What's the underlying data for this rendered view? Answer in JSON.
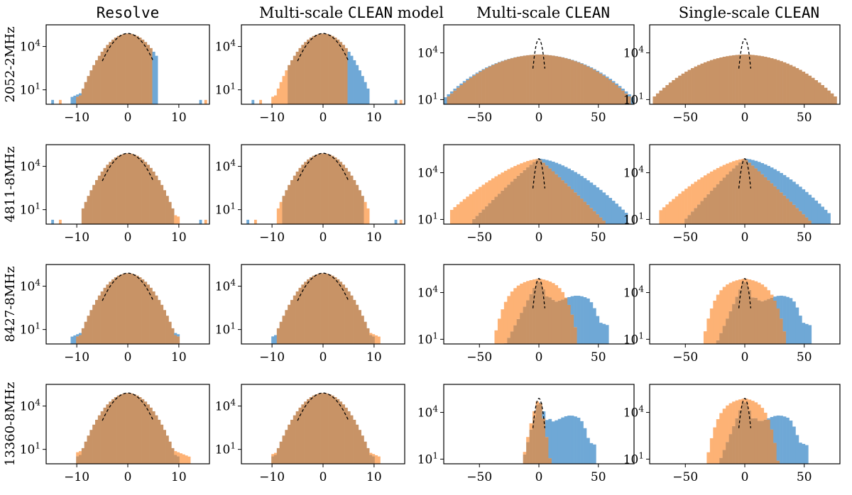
{
  "figure": {
    "columns": [
      {
        "label_plain": "",
        "label_mono": "Resolve",
        "label_tail": ""
      },
      {
        "label_plain": "Multi-scale ",
        "label_mono": "CLEAN",
        "label_tail": " model"
      },
      {
        "label_plain": "Multi-scale ",
        "label_mono": "CLEAN",
        "label_tail": ""
      },
      {
        "label_plain": "Single-scale ",
        "label_mono": "CLEAN",
        "label_tail": ""
      }
    ],
    "rows": [
      "2052-2MHz",
      "4811-8MHz",
      "8427-8MHz",
      "13360-8MHz"
    ],
    "colors": {
      "blue": "#6fa8d6",
      "orange": "#fdb275",
      "overlap": "#c89366",
      "gaussian": "#000000"
    }
  },
  "chart_data": {
    "type": "histogram-grid",
    "yscale": "log",
    "ytick_labels": [
      "10^1",
      "10^4"
    ],
    "gaussian_overlay": "dashed",
    "columns": [
      {
        "xlim": [
          -16,
          16
        ],
        "xticks": [
          -10,
          0,
          10
        ],
        "ylim_log10": [
          0,
          5.5
        ]
      },
      {
        "xlim": [
          -16,
          16
        ],
        "xticks": [
          -10,
          0,
          10
        ],
        "ylim_log10": [
          0,
          5.5
        ]
      },
      {
        "xlim": [
          -80,
          80
        ],
        "xticks": [
          -50,
          0,
          50
        ],
        "ylim_log10": [
          0.7,
          5.8
        ]
      },
      {
        "xlim": [
          -80,
          80
        ],
        "xticks": [
          -50,
          0,
          50
        ],
        "ylim_log10": [
          0.7,
          5.8
        ]
      }
    ],
    "series": [
      {
        "color": "blue"
      },
      {
        "color": "orange"
      }
    ],
    "panels": [
      [
        {
          "blue": {
            "peak": 4.9,
            "left": -11,
            "right": 6,
            "tailL": -15,
            "tailR": 15
          },
          "orange": {
            "peak": 4.9,
            "left": -10,
            "right": 5,
            "tailL": -16,
            "tailR": 15
          }
        },
        {
          "blue": {
            "peak": 4.9,
            "left": -7,
            "right": 9,
            "tailL": -14,
            "tailR": 15
          },
          "orange": {
            "peak": 4.9,
            "left": -10,
            "right": 5,
            "tailL": -16,
            "tailR": 15
          }
        },
        {
          "blue": {
            "peak": 3.9,
            "left": -80,
            "right": 80,
            "shape": "wide"
          },
          "orange": {
            "peak": 3.9,
            "left": -78,
            "right": 77,
            "shape": "wide"
          }
        },
        {
          "blue": {
            "peak": 3.9,
            "left": -78,
            "right": 78,
            "shape": "wide"
          },
          "orange": {
            "peak": 3.9,
            "left": -78,
            "right": 78,
            "shape": "wide"
          }
        }
      ],
      [
        {
          "blue": {
            "peak": 4.9,
            "left": -9,
            "right": 9,
            "tailL": -15,
            "tailR": 15
          },
          "orange": {
            "peak": 4.9,
            "left": -9,
            "right": 10,
            "tailL": -16,
            "tailR": 15
          }
        },
        {
          "blue": {
            "peak": 4.9,
            "left": -8,
            "right": 8,
            "tailL": -15,
            "tailR": 15
          },
          "orange": {
            "peak": 4.9,
            "left": -9,
            "right": 9,
            "tailL": -16,
            "tailR": 15
          }
        },
        {
          "blue": {
            "peak": 4.9,
            "left": -55,
            "right": 75,
            "shape": "skewR"
          },
          "orange": {
            "peak": 4.9,
            "left": -75,
            "right": 55,
            "shape": "skewL"
          }
        },
        {
          "blue": {
            "peak": 4.9,
            "left": -50,
            "right": 72,
            "shape": "skewR"
          },
          "orange": {
            "peak": 4.9,
            "left": -72,
            "right": 55,
            "shape": "skewL"
          }
        }
      ],
      [
        {
          "blue": {
            "peak": 4.9,
            "left": -11,
            "right": 10
          },
          "orange": {
            "peak": 4.9,
            "left": -10,
            "right": 10
          }
        },
        {
          "blue": {
            "peak": 4.9,
            "left": -10,
            "right": 10
          },
          "orange": {
            "peak": 4.9,
            "left": -9,
            "right": 11
          }
        },
        {
          "blue": {
            "peak": 4.9,
            "left": -28,
            "right": 58,
            "shape": "shoulder"
          },
          "orange": {
            "peak": 4.9,
            "left": -38,
            "right": 33,
            "shape": "broad"
          }
        },
        {
          "blue": {
            "peak": 4.9,
            "left": -24,
            "right": 55,
            "shape": "shoulder"
          },
          "orange": {
            "peak": 4.9,
            "left": -35,
            "right": 35,
            "shape": "broad"
          }
        }
      ],
      [
        {
          "blue": {
            "peak": 4.9,
            "left": -10,
            "right": 10
          },
          "orange": {
            "peak": 4.9,
            "left": -10,
            "right": 12
          }
        },
        {
          "blue": {
            "peak": 4.9,
            "left": -10,
            "right": 10
          },
          "orange": {
            "peak": 4.9,
            "left": -10,
            "right": 11
          }
        },
        {
          "blue": {
            "peak": 4.9,
            "left": -14,
            "right": 48,
            "shape": "shoulder"
          },
          "orange": {
            "peak": 4.9,
            "left": -14,
            "right": 10,
            "shape": "narrow"
          }
        },
        {
          "blue": {
            "peak": 4.9,
            "left": -22,
            "right": 52,
            "shape": "shoulder"
          },
          "orange": {
            "peak": 4.9,
            "left": -32,
            "right": 28,
            "shape": "broad"
          }
        }
      ]
    ]
  }
}
